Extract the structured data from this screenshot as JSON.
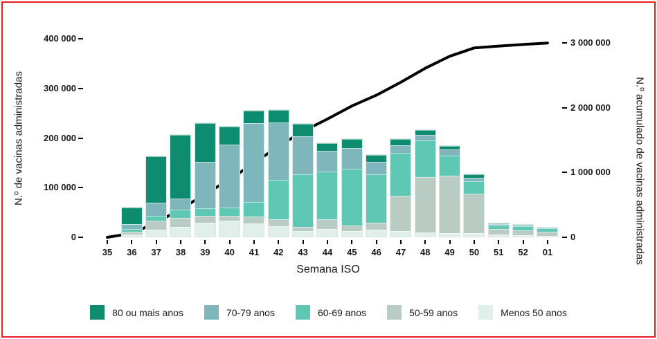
{
  "chart_data": {
    "type": "bar",
    "stacked": true,
    "grid": false,
    "legend_position": "bottom",
    "frame_border_color": "#ed1c24",
    "x": {
      "label": "Semana ISO",
      "categories": [
        "35",
        "36",
        "37",
        "38",
        "39",
        "40",
        "41",
        "42",
        "43",
        "44",
        "45",
        "46",
        "47",
        "48",
        "49",
        "50",
        "51",
        "52",
        "01"
      ]
    },
    "y_left": {
      "title": "N.º de vacinas administradas",
      "lim": [
        0,
        400000
      ],
      "ticks": [
        {
          "value": 0,
          "label": "0"
        },
        {
          "value": 100000,
          "label": "100 000"
        },
        {
          "value": 200000,
          "label": "200 000"
        },
        {
          "value": 300000,
          "label": "300 000"
        },
        {
          "value": 400000,
          "label": "400 000"
        }
      ]
    },
    "y_right": {
      "title": "N.º acumulado de vacinas administradas",
      "lim": [
        0,
        3000000
      ],
      "ticks": [
        {
          "value": 0,
          "label": "0"
        },
        {
          "value": 1000000,
          "label": "1 000 000"
        },
        {
          "value": 2000000,
          "label": "2 000 000"
        },
        {
          "value": 3000000,
          "label": "3 000 000"
        }
      ]
    },
    "series": [
      {
        "name": "80 ou mais anos",
        "color": "#0d8c6f",
        "values": [
          0,
          35000,
          95000,
          130000,
          79000,
          38000,
          25000,
          26000,
          26000,
          16000,
          19000,
          14000,
          12000,
          9000,
          7000,
          7000,
          1000,
          1000,
          0
        ]
      },
      {
        "name": "70-79 anos",
        "color": "#7eb6bc",
        "values": [
          0,
          10000,
          28000,
          23000,
          95000,
          128000,
          160000,
          116000,
          77000,
          42000,
          42000,
          26000,
          16000,
          12000,
          13000,
          7000,
          2000,
          1000,
          1000
        ]
      },
      {
        "name": "60-69 anos",
        "color": "#5ec8b4",
        "values": [
          0,
          6000,
          9000,
          17000,
          16000,
          16000,
          30000,
          81000,
          107000,
          98000,
          116000,
          99000,
          88000,
          74000,
          40000,
          26000,
          8000,
          9000,
          8000
        ]
      },
      {
        "name": "50-59 anos",
        "color": "#b9ccc4",
        "values": [
          0,
          6000,
          19000,
          18000,
          14000,
          10000,
          14000,
          14000,
          9000,
          19000,
          12000,
          14000,
          72000,
          113000,
          118000,
          81000,
          14000,
          12000,
          10000
        ]
      },
      {
        "name": "Menos 50 anos",
        "color": "#e0efe9",
        "values": [
          0,
          4000,
          14000,
          20000,
          28000,
          33000,
          27000,
          21000,
          11000,
          16000,
          11000,
          14000,
          11000,
          9000,
          7000,
          7000,
          4000,
          3000,
          2000
        ]
      }
    ],
    "cumulative_line": {
      "name": "N.º acumulado de vacinas administradas",
      "color": "#000000",
      "values": [
        0,
        61000,
        226000,
        434000,
        666000,
        891000,
        1147000,
        1405000,
        1635000,
        1826000,
        2026000,
        2193000,
        2392000,
        2609000,
        2794000,
        2922000,
        2951000,
        2977000,
        2998000
      ]
    }
  }
}
